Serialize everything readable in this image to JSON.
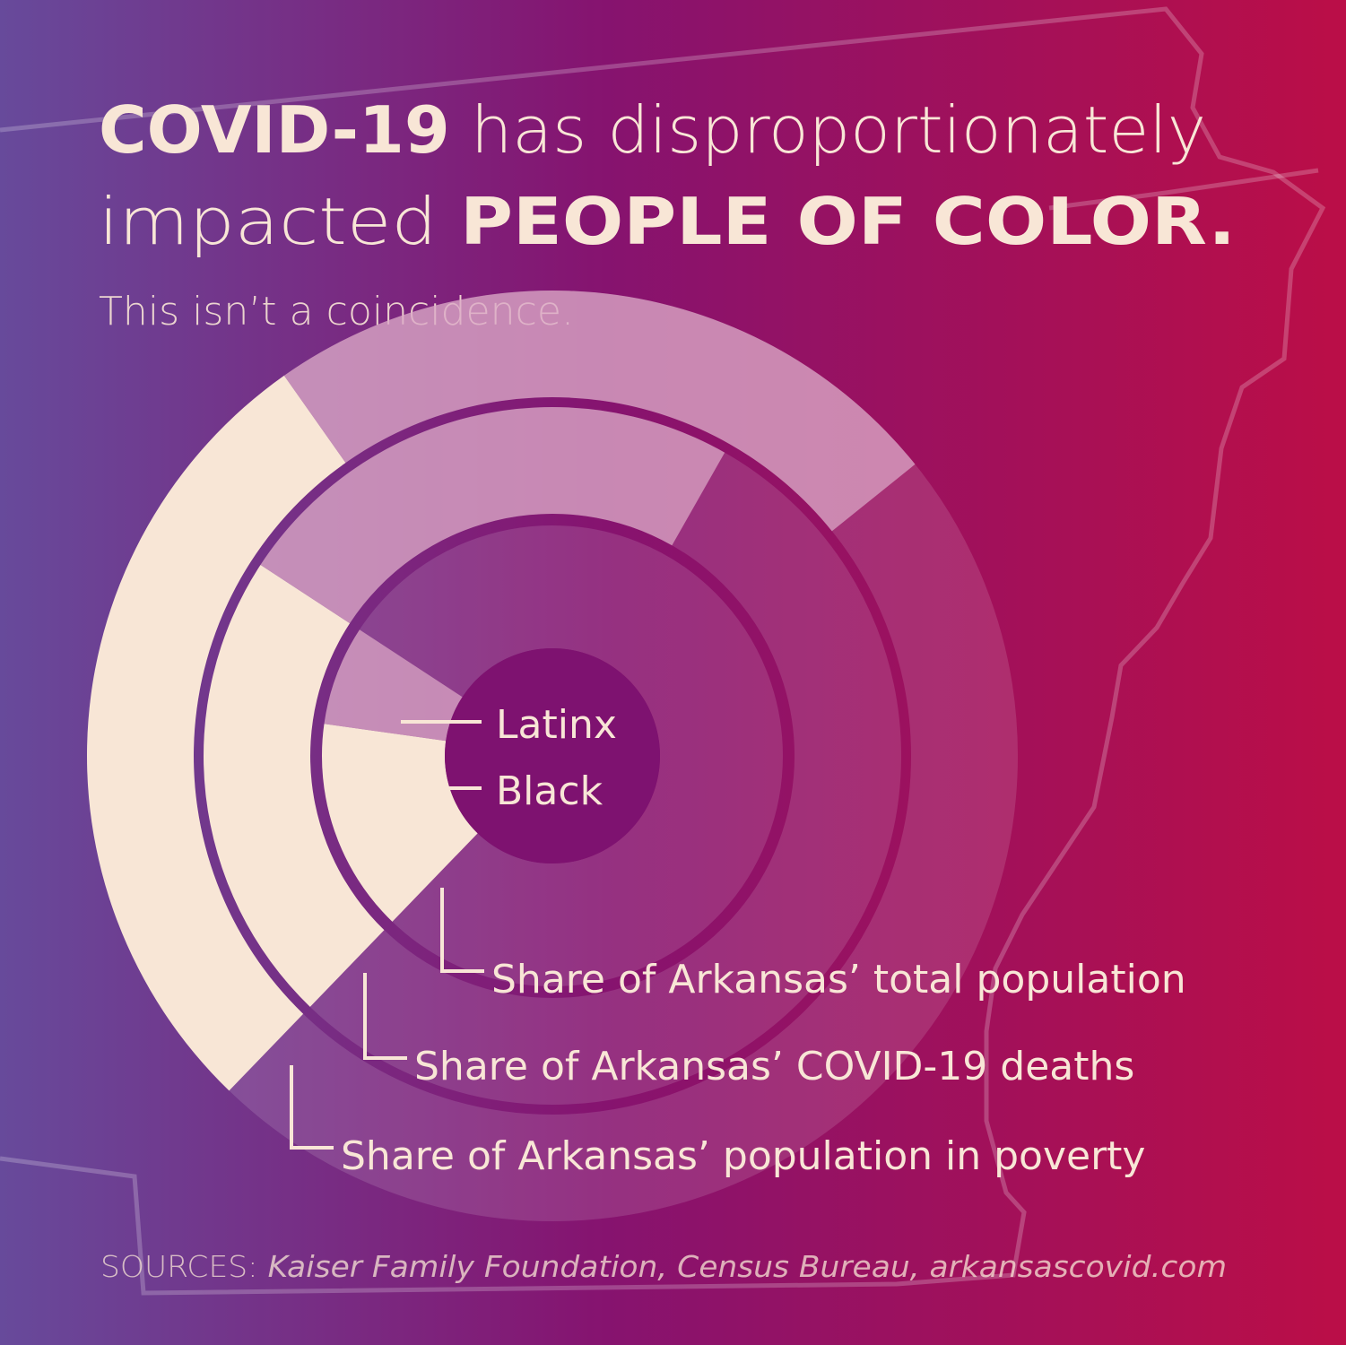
{
  "header": {
    "line1": [
      "COVID-19",
      " has disproportionately"
    ],
    "line2": [
      "impacted ",
      "PEOPLE OF COLOR."
    ],
    "subtitle": "This isn’t a coincidence."
  },
  "chart_data": {
    "type": "nested-donut",
    "categories": [
      "Latinx",
      "Black"
    ],
    "colors": [
      "#d9a6c4",
      "#f8e6d6"
    ],
    "series": [
      {
        "name": "Share of Arkansas’ total population",
        "values": [
          7,
          15
        ]
      },
      {
        "name": "Share of Arkansas’ COVID-19 deaths",
        "values": [
          24,
          22
        ]
      },
      {
        "name": "Share of Arkansas’ population in poverty",
        "values": [
          24,
          28
        ]
      }
    ]
  },
  "sources": {
    "label": "SOURCES:",
    "text": " Kaiser Family Foundation, Census Bureau, arkansascovid.com"
  }
}
